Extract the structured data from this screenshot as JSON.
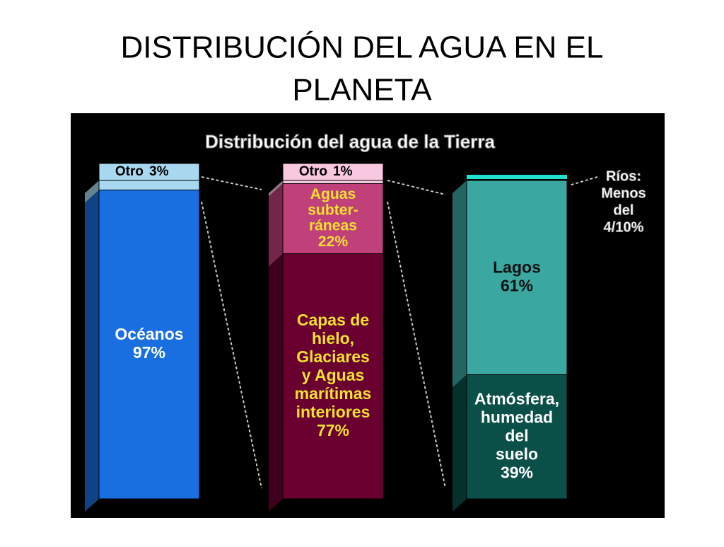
{
  "slide_title_lines": [
    "DISTRIBUCIÓN DEL AGUA EN EL",
    "PLANETA"
  ],
  "chart_data": {
    "type": "stacked-column-breakdown",
    "title": "Distribución del agua de la Tierra",
    "ylim": [
      0,
      100
    ],
    "bars": [
      {
        "segments": [
          {
            "label_lines": [
              "Océanos"
            ],
            "value": 97,
            "value_label": "97%",
            "color": "#1a6fe0",
            "text_color": "#ffffff"
          },
          {
            "label_lines": [
              "Otro"
            ],
            "value": 3,
            "value_label": "3%",
            "color": "#a8d8f0",
            "text_color": "#000000"
          }
        ]
      },
      {
        "segments": [
          {
            "label_lines": [
              "Capas de",
              "hielo,",
              "Glaciares",
              "y Aguas",
              "marítimas",
              "interiores"
            ],
            "value": 77,
            "value_label": "77%",
            "color": "#6a0030",
            "text_color": "#f0e030"
          },
          {
            "label_lines": [
              "Aguas",
              "subter-",
              "ráneas"
            ],
            "value": 22,
            "value_label": "22%",
            "color": "#c0407a",
            "text_color": "#f0e030"
          },
          {
            "label_lines": [
              "Otro"
            ],
            "value": 1,
            "value_label": "1%",
            "color": "#f8c8e0",
            "text_color": "#000000"
          }
        ]
      },
      {
        "segments": [
          {
            "label_lines": [
              "Atmósfera,",
              "humedad",
              "del",
              "suelo"
            ],
            "value": 39,
            "value_label": "39%",
            "color": "#0a5048",
            "text_color": "#ffffff"
          },
          {
            "label_lines": [
              "Lagos"
            ],
            "value": 61,
            "value_label": "61%",
            "color": "#3aa8a0",
            "text_color": "#111111"
          }
        ]
      }
    ],
    "annotation_lines": [
      "Ríos:",
      "Menos",
      "del",
      "4/10%"
    ]
  }
}
